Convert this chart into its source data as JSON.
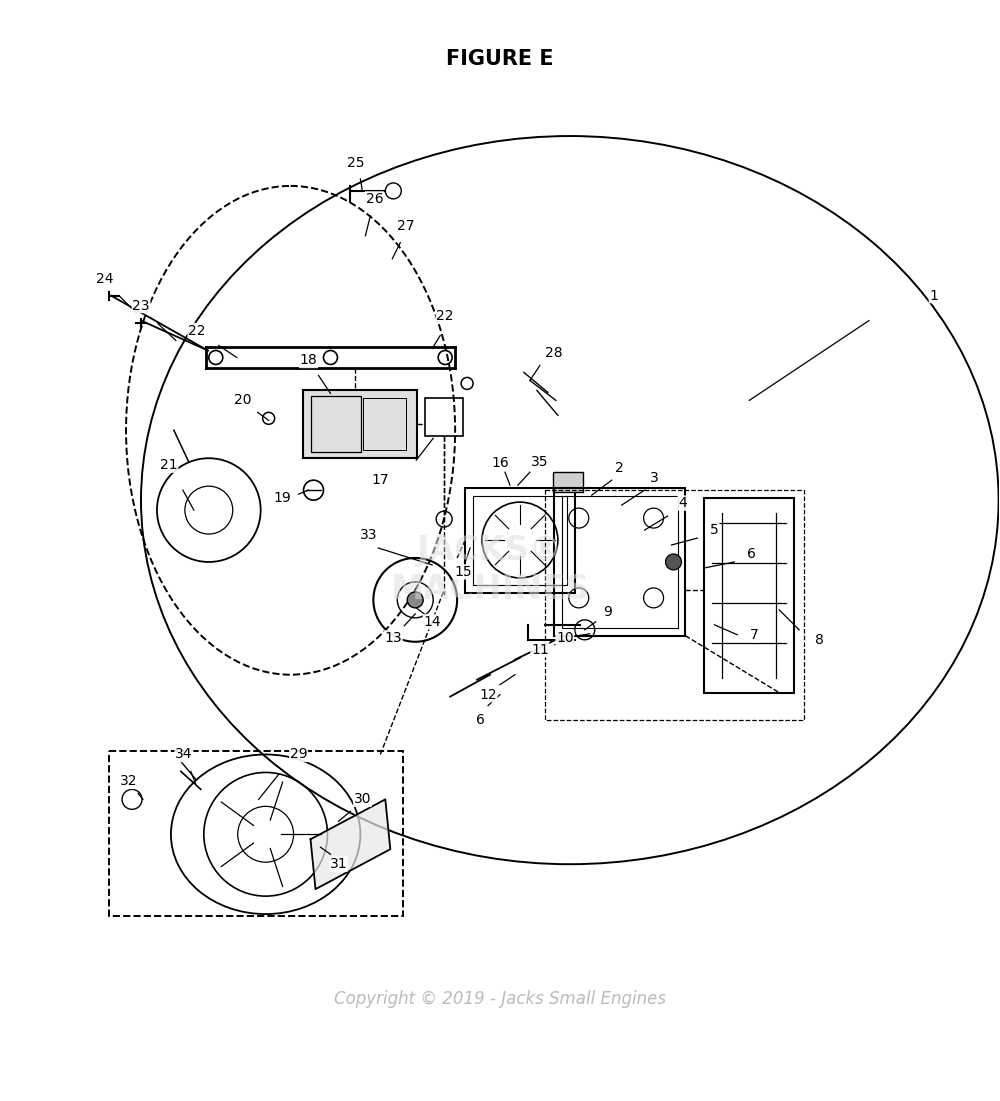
{
  "title": "FIGURE E",
  "title_fontsize": 15,
  "title_fontweight": "bold",
  "background_color": "#ffffff",
  "copyright_text": "Copyright © 2019 - Jacks Small Engines",
  "copyright_color": "#bbbbbb",
  "copyright_fontsize": 12,
  "fig_width": 10.0,
  "fig_height": 11.01,
  "dpi": 100,
  "label_fontsize": 10,
  "label_color": "#000000",
  "line_color": "#000000",
  "dashed_color": "#000000"
}
